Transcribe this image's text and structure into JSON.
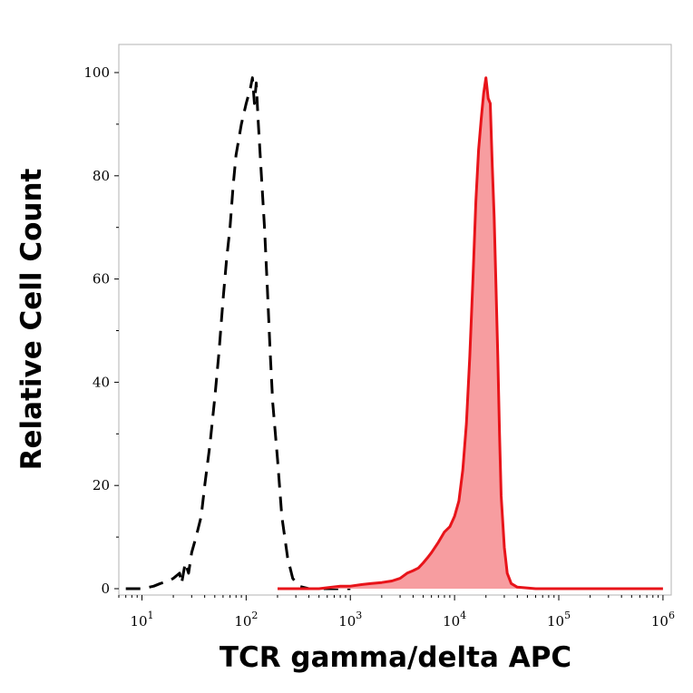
{
  "chart_data": {
    "type": "area",
    "title": "",
    "xlabel": "TCR gamma/delta APC",
    "ylabel": "Relative Cell Count",
    "x_scale": "log",
    "xlim": [
      6,
      1200000
    ],
    "ylim": [
      0,
      100
    ],
    "grid": false,
    "legend": "none",
    "x_ticks": [
      {
        "base": "10",
        "exp": "1",
        "value": 10
      },
      {
        "base": "10",
        "exp": "2",
        "value": 100
      },
      {
        "base": "10",
        "exp": "3",
        "value": 1000
      },
      {
        "base": "10",
        "exp": "4",
        "value": 10000
      },
      {
        "base": "10",
        "exp": "5",
        "value": 100000
      },
      {
        "base": "10",
        "exp": "6",
        "value": 1000000
      }
    ],
    "y_ticks": [
      {
        "label": "0",
        "value": 0
      },
      {
        "label": "20",
        "value": 20
      },
      {
        "label": "40",
        "value": 40
      },
      {
        "label": "60",
        "value": 60
      },
      {
        "label": "80",
        "value": 80
      },
      {
        "label": "100",
        "value": 100
      }
    ],
    "series": [
      {
        "style": "dashed",
        "color": "#000000",
        "fill": "none",
        "x": [
          7,
          10,
          13,
          15,
          18,
          20,
          23,
          24,
          26,
          28,
          30,
          33,
          37,
          40,
          45,
          50,
          55,
          60,
          65,
          70,
          75,
          80,
          90,
          100,
          110,
          115,
          120,
          125,
          130,
          140,
          150,
          160,
          170,
          180,
          200,
          220,
          250,
          280,
          320,
          400,
          600,
          1000
        ],
        "y": [
          0,
          0,
          0.5,
          1,
          1.5,
          2,
          3,
          1,
          5,
          3,
          7,
          10,
          14,
          20,
          28,
          37,
          46,
          56,
          64,
          70,
          78,
          84,
          90,
          94,
          97,
          99,
          94,
          98,
          91,
          80,
          70,
          58,
          46,
          36,
          25,
          14,
          6,
          2,
          0.5,
          0,
          0,
          0
        ]
      },
      {
        "style": "solid",
        "color": "#e8141a",
        "fill": "#f79da0",
        "x": [
          200,
          500,
          800,
          1000,
          1300,
          1600,
          2000,
          2500,
          3000,
          3500,
          4000,
          4500,
          5000,
          5500,
          6000,
          7000,
          8000,
          9000,
          10000,
          11000,
          12000,
          13000,
          14000,
          15000,
          16000,
          17000,
          18000,
          19000,
          20000,
          21000,
          22000,
          23000,
          24000,
          25000,
          26000,
          27000,
          28000,
          30000,
          32000,
          35000,
          40000,
          60000,
          100000,
          300000,
          1000000
        ],
        "y": [
          0,
          0,
          0.5,
          0.5,
          0.8,
          1,
          1.2,
          1.5,
          2,
          3,
          3.5,
          4,
          5,
          6,
          7,
          9,
          11,
          12,
          14,
          17,
          23,
          32,
          45,
          60,
          75,
          85,
          91,
          96,
          99,
          95,
          94,
          82,
          72,
          58,
          45,
          30,
          18,
          8,
          3,
          1,
          0.3,
          0,
          0,
          0,
          0
        ]
      }
    ]
  }
}
